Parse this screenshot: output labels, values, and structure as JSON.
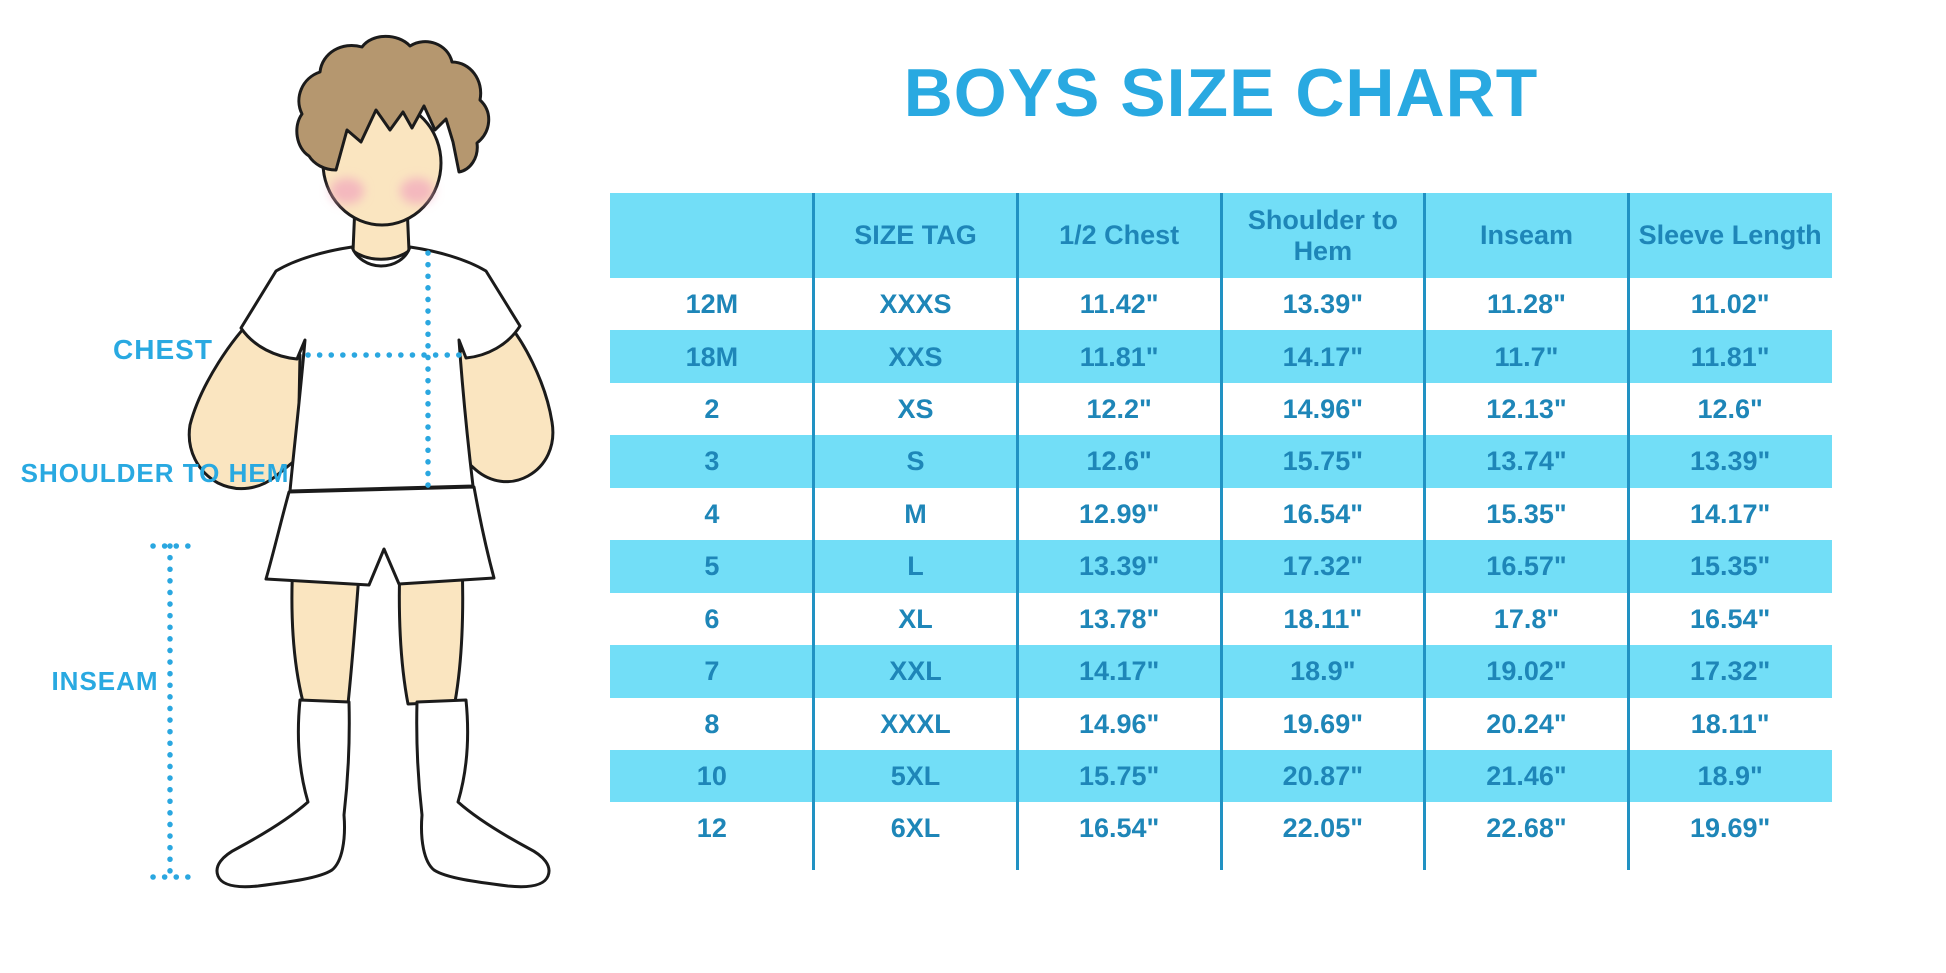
{
  "title": "BOYS SIZE CHART",
  "colors": {
    "title_blue": "#29A9E1",
    "label_blue": "#29A9E1",
    "table_text_blue": "#1E86B8",
    "band_cyan": "#72DEF7",
    "divider_blue": "#2192C3",
    "dotted_line_blue": "#2AA7E0",
    "skin": "#FAE5C0",
    "hair_brown": "#B5976F",
    "cheek_pink": "#F2A9BE"
  },
  "figure": {
    "labels": {
      "chest": "CHEST",
      "shoulder_to_hem": "SHOULDER TO HEM",
      "inseam": "INSEAM"
    }
  },
  "table": {
    "headers": [
      "",
      "SIZE TAG",
      "1/2 Chest",
      "Shoulder to Hem",
      "Inseam",
      "Sleeve Length"
    ],
    "rows": [
      [
        "12M",
        "XXXS",
        "11.42\"",
        "13.39\"",
        "11.28\"",
        "11.02\""
      ],
      [
        "18M",
        "XXS",
        "11.81\"",
        "14.17\"",
        "11.7\"",
        "11.81\""
      ],
      [
        "2",
        "XS",
        "12.2\"",
        "14.96\"",
        "12.13\"",
        "12.6\""
      ],
      [
        "3",
        "S",
        "12.6\"",
        "15.75\"",
        "13.74\"",
        "13.39\""
      ],
      [
        "4",
        "M",
        "12.99\"",
        "16.54\"",
        "15.35\"",
        "14.17\""
      ],
      [
        "5",
        "L",
        "13.39\"",
        "17.32\"",
        "16.57\"",
        "15.35\""
      ],
      [
        "6",
        "XL",
        "13.78\"",
        "18.11\"",
        "17.8\"",
        "16.54\""
      ],
      [
        "7",
        "XXL",
        "14.17\"",
        "18.9\"",
        "19.02\"",
        "17.32\""
      ],
      [
        "8",
        "XXXL",
        "14.96\"",
        "19.69\"",
        "20.24\"",
        "18.11\""
      ],
      [
        "10",
        "5XL",
        "15.75\"",
        "20.87\"",
        "21.46\"",
        "18.9\""
      ],
      [
        "12",
        "6XL",
        "16.54\"",
        "22.05\"",
        "22.68\"",
        "19.69\""
      ]
    ]
  }
}
